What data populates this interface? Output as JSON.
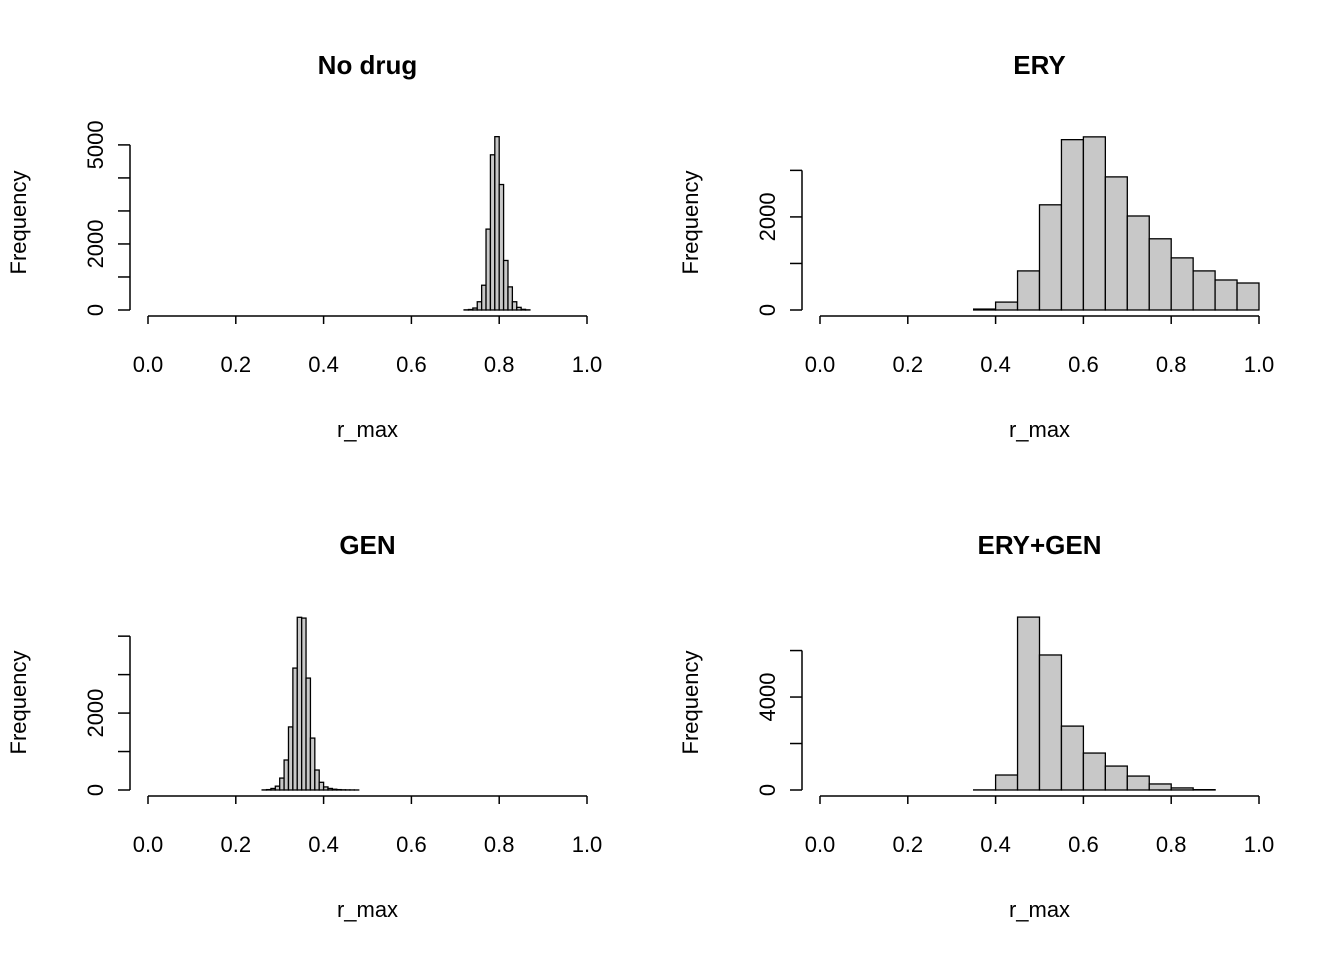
{
  "chart_data": [
    {
      "type": "histogram",
      "title": "No drug",
      "xlabel": "r_max",
      "ylabel": "Frequency",
      "color": "#c8c8c8",
      "bins": [
        0.72,
        0.73,
        0.74,
        0.75,
        0.76,
        0.77,
        0.78,
        0.79,
        0.8,
        0.81,
        0.82,
        0.83,
        0.84,
        0.85,
        0.86,
        0.87
      ],
      "values": [
        5,
        15,
        60,
        250,
        750,
        2450,
        4700,
        5250,
        3800,
        1500,
        700,
        250,
        80,
        20,
        5
      ],
      "xlim": [
        0,
        1
      ],
      "xticks": [
        {
          "value": 0,
          "label": "0.0"
        },
        0.2,
        0.4,
        0.6,
        0.8,
        {
          "value": 1,
          "label": "1.0"
        }
      ],
      "ylim": [
        0,
        5300
      ],
      "yticks": [
        0,
        {
          "value": 1000,
          "label": null
        },
        2000,
        {
          "value": 3000,
          "label": null
        },
        {
          "value": 4000,
          "label": null
        },
        5000
      ]
    },
    {
      "type": "histogram",
      "title": "ERY",
      "xlabel": "r_max",
      "ylabel": "Frequency",
      "color": "#c8c8c8",
      "bins": [
        0.35,
        0.4,
        0.45,
        0.5,
        0.55,
        0.6,
        0.65,
        0.7,
        0.75,
        0.8,
        0.85,
        0.9,
        0.95,
        1.0
      ],
      "values": [
        20,
        170,
        840,
        2260,
        3660,
        3720,
        2860,
        2020,
        1530,
        1120,
        840,
        645,
        580
      ],
      "xlim": [
        0,
        1
      ],
      "xticks": [
        {
          "value": 0,
          "label": "0.0"
        },
        0.2,
        0.4,
        0.6,
        0.8,
        {
          "value": 1,
          "label": "1.0"
        }
      ],
      "ylim": [
        0,
        3760
      ],
      "yticks": [
        0,
        {
          "value": 1000,
          "label": null
        },
        2000,
        {
          "value": 3000,
          "label": null
        }
      ]
    },
    {
      "type": "histogram",
      "title": "GEN",
      "xlabel": "r_max",
      "ylabel": "Frequency",
      "color": "#c8c8c8",
      "bins": [
        0.26,
        0.27,
        0.28,
        0.29,
        0.3,
        0.31,
        0.32,
        0.33,
        0.34,
        0.35,
        0.36,
        0.37,
        0.38,
        0.39,
        0.4,
        0.41,
        0.42,
        0.43,
        0.44,
        0.45,
        0.46,
        0.47,
        0.48
      ],
      "values": [
        3,
        10,
        40,
        100,
        310,
        780,
        1640,
        3170,
        4490,
        4470,
        2910,
        1350,
        520,
        200,
        80,
        40,
        20,
        10,
        5,
        3,
        2,
        1
      ],
      "xlim": [
        0,
        1
      ],
      "xticks": [
        {
          "value": 0,
          "label": "0.0"
        },
        0.2,
        0.4,
        0.6,
        0.8,
        {
          "value": 1,
          "label": "1.0"
        }
      ],
      "ylim": [
        0,
        4550
      ],
      "yticks": [
        0,
        {
          "value": 1000,
          "label": null
        },
        2000,
        {
          "value": 3000,
          "label": null
        },
        {
          "value": 4000,
          "label": null
        }
      ]
    },
    {
      "type": "histogram",
      "title": "ERY+GEN",
      "xlabel": "r_max",
      "ylabel": "Frequency",
      "color": "#c8c8c8",
      "bins": [
        0.35,
        0.4,
        0.45,
        0.5,
        0.55,
        0.6,
        0.65,
        0.7,
        0.75,
        0.8,
        0.85,
        0.9
      ],
      "values": [
        5,
        645,
        7440,
        5810,
        2750,
        1590,
        1030,
        600,
        260,
        90,
        15
      ],
      "xlim": [
        0,
        1
      ],
      "xticks": [
        {
          "value": 0,
          "label": "0.0"
        },
        0.2,
        0.4,
        0.6,
        0.8,
        {
          "value": 1,
          "label": "1.0"
        }
      ],
      "ylim": [
        0,
        7530
      ],
      "yticks": [
        0,
        {
          "value": 2000,
          "label": null
        },
        4000,
        {
          "value": 6000,
          "label": null
        }
      ]
    }
  ]
}
